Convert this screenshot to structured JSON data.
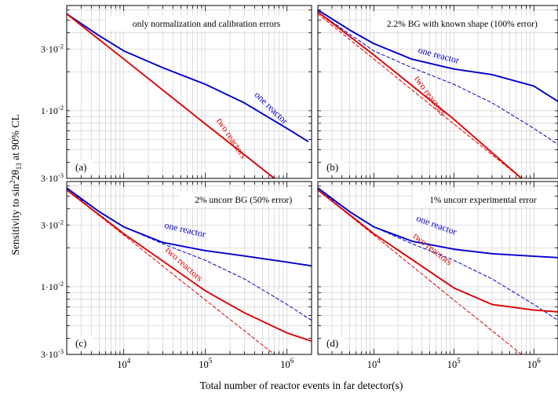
{
  "figure": {
    "ylabel_prefix": "Sensitivity to sin",
    "ylabel_sup": "2",
    "ylabel_mid": "2θ",
    "ylabel_sub": "13",
    "ylabel_suffix": " at 90% CL",
    "xlabel": "Total number of reactor events in far detector(s)",
    "xtick_base": "10",
    "ytick_mantissa": [
      "3·10",
      "1·10",
      "3·10"
    ],
    "ytick_exponent": [
      "-2",
      "-2",
      "-3"
    ],
    "colors": {
      "one_reactor": "#0000cc",
      "two_reactors": "#dd0000",
      "grid": "#cfcfcf"
    }
  },
  "chart_data": [
    {
      "type": "line",
      "panel": "(a)",
      "title": "only normalization and calibration errors",
      "xscale": "log",
      "yscale": "log",
      "xlim": [
        2000,
        2000000
      ],
      "ylim": [
        0.003,
        0.065
      ],
      "xticks": [
        10000,
        100000,
        1000000
      ],
      "xtick_exponents": [
        "4",
        "5",
        "6"
      ],
      "yticks": [
        0.03,
        0.01,
        0.003
      ],
      "grid": true,
      "series": [
        {
          "name": "one reactor",
          "style": "solid",
          "color": "#0000cc",
          "x": [
            2000,
            5000,
            10000,
            30000,
            100000,
            300000,
            1000000,
            1800000
          ],
          "y": [
            0.056,
            0.038,
            0.029,
            0.0215,
            0.016,
            0.0115,
            0.0073,
            0.0058
          ]
        },
        {
          "name": "two reactors",
          "style": "solid",
          "color": "#dd0000",
          "x": [
            2000,
            10000,
            100000,
            700000
          ],
          "y": [
            0.056,
            0.0251,
            0.0079,
            0.003
          ]
        }
      ],
      "labels": [
        {
          "text": "one reactor",
          "series": "one reactor"
        },
        {
          "text": "two reactors",
          "series": "two reactors"
        }
      ]
    },
    {
      "type": "line",
      "panel": "(b)",
      "title": "2.2% BG with known shape (100% error)",
      "xscale": "log",
      "yscale": "log",
      "xlim": [
        2000,
        2000000
      ],
      "ylim": [
        0.003,
        0.065
      ],
      "xticks": [
        10000,
        100000,
        1000000
      ],
      "xtick_exponents": [
        "4",
        "5",
        "6"
      ],
      "yticks": [
        0.03,
        0.01,
        0.003
      ],
      "grid": true,
      "series": [
        {
          "name": "one reactor",
          "style": "solid",
          "color": "#0000cc",
          "x": [
            2000,
            5000,
            10000,
            30000,
            100000,
            300000,
            1000000,
            2000000
          ],
          "y": [
            0.06,
            0.042,
            0.033,
            0.025,
            0.021,
            0.019,
            0.0155,
            0.0118
          ]
        },
        {
          "name": "one reactor (dashed)",
          "style": "dashed",
          "color": "#0000cc",
          "x": [
            2000,
            5000,
            10000,
            30000,
            100000,
            300000,
            1000000,
            2000000
          ],
          "y": [
            0.058,
            0.039,
            0.029,
            0.0215,
            0.016,
            0.0115,
            0.0073,
            0.0055
          ]
        },
        {
          "name": "two reactors",
          "style": "solid",
          "color": "#dd0000",
          "x": [
            2000,
            10000,
            100000,
            700000
          ],
          "y": [
            0.058,
            0.027,
            0.0086,
            0.003
          ]
        },
        {
          "name": "two reactors (dashed)",
          "style": "dashed",
          "color": "#dd0000",
          "x": [
            2000,
            10000,
            100000,
            700000
          ],
          "y": [
            0.056,
            0.0251,
            0.0079,
            0.003
          ]
        }
      ],
      "labels": [
        {
          "text": "one reactor",
          "series": "one reactor"
        },
        {
          "text": "two reactors",
          "series": "two reactors"
        }
      ]
    },
    {
      "type": "line",
      "panel": "(c)",
      "title": "2% uncorr BG  (50% error)",
      "xscale": "log",
      "yscale": "log",
      "xlim": [
        2000,
        2000000
      ],
      "ylim": [
        0.003,
        0.065
      ],
      "xticks": [
        10000,
        100000,
        1000000
      ],
      "xtick_exponents": [
        "4",
        "5",
        "6"
      ],
      "yticks": [
        0.03,
        0.01,
        0.003
      ],
      "grid": true,
      "series": [
        {
          "name": "one reactor",
          "style": "solid",
          "color": "#0000cc",
          "x": [
            2000,
            5000,
            10000,
            30000,
            100000,
            300000,
            1000000,
            2000000
          ],
          "y": [
            0.058,
            0.038,
            0.029,
            0.022,
            0.019,
            0.0173,
            0.0155,
            0.0145
          ]
        },
        {
          "name": "one reactor (dashed)",
          "style": "dashed",
          "color": "#0000cc",
          "x": [
            2000,
            5000,
            10000,
            30000,
            100000,
            300000,
            1000000,
            2000000
          ],
          "y": [
            0.056,
            0.038,
            0.029,
            0.0215,
            0.016,
            0.0115,
            0.0073,
            0.0055
          ]
        },
        {
          "name": "two reactors",
          "style": "solid",
          "color": "#dd0000",
          "x": [
            2000,
            10000,
            100000,
            300000,
            1000000,
            2000000
          ],
          "y": [
            0.056,
            0.0257,
            0.0093,
            0.0063,
            0.0044,
            0.0038
          ]
        },
        {
          "name": "two reactors (dashed)",
          "style": "dashed",
          "color": "#dd0000",
          "x": [
            2000,
            10000,
            100000,
            700000
          ],
          "y": [
            0.056,
            0.0251,
            0.0079,
            0.003
          ]
        }
      ],
      "labels": [
        {
          "text": "one reactor",
          "series": "one reactor"
        },
        {
          "text": "two reactors",
          "series": "two reactors"
        }
      ]
    },
    {
      "type": "line",
      "panel": "(d)",
      "title": "1% uncorr experimental error",
      "xscale": "log",
      "yscale": "log",
      "xlim": [
        2000,
        2000000
      ],
      "ylim": [
        0.003,
        0.065
      ],
      "xticks": [
        10000,
        100000,
        1000000
      ],
      "xtick_exponents": [
        "4",
        "5",
        "6"
      ],
      "yticks": [
        0.03,
        0.01,
        0.003
      ],
      "grid": true,
      "series": [
        {
          "name": "one reactor",
          "style": "solid",
          "color": "#0000cc",
          "x": [
            2000,
            5000,
            10000,
            30000,
            100000,
            300000,
            1000000,
            2000000
          ],
          "y": [
            0.058,
            0.038,
            0.029,
            0.0225,
            0.0195,
            0.018,
            0.0172,
            0.0168
          ]
        },
        {
          "name": "one reactor (dashed)",
          "style": "dashed",
          "color": "#0000cc",
          "x": [
            2000,
            5000,
            10000,
            30000,
            100000,
            300000,
            1000000,
            2000000
          ],
          "y": [
            0.056,
            0.038,
            0.029,
            0.0215,
            0.016,
            0.0115,
            0.0073,
            0.0055
          ]
        },
        {
          "name": "two reactors",
          "style": "solid",
          "color": "#dd0000",
          "x": [
            2000,
            10000,
            100000,
            300000,
            1000000,
            2000000
          ],
          "y": [
            0.056,
            0.0257,
            0.0098,
            0.0073,
            0.0066,
            0.0064
          ]
        },
        {
          "name": "two reactors (dashed)",
          "style": "dashed",
          "color": "#dd0000",
          "x": [
            2000,
            10000,
            100000,
            700000
          ],
          "y": [
            0.056,
            0.0251,
            0.0079,
            0.003
          ]
        }
      ],
      "labels": [
        {
          "text": "one reactor",
          "series": "one reactor"
        },
        {
          "text": "two reactors",
          "series": "two reactors"
        }
      ]
    }
  ]
}
